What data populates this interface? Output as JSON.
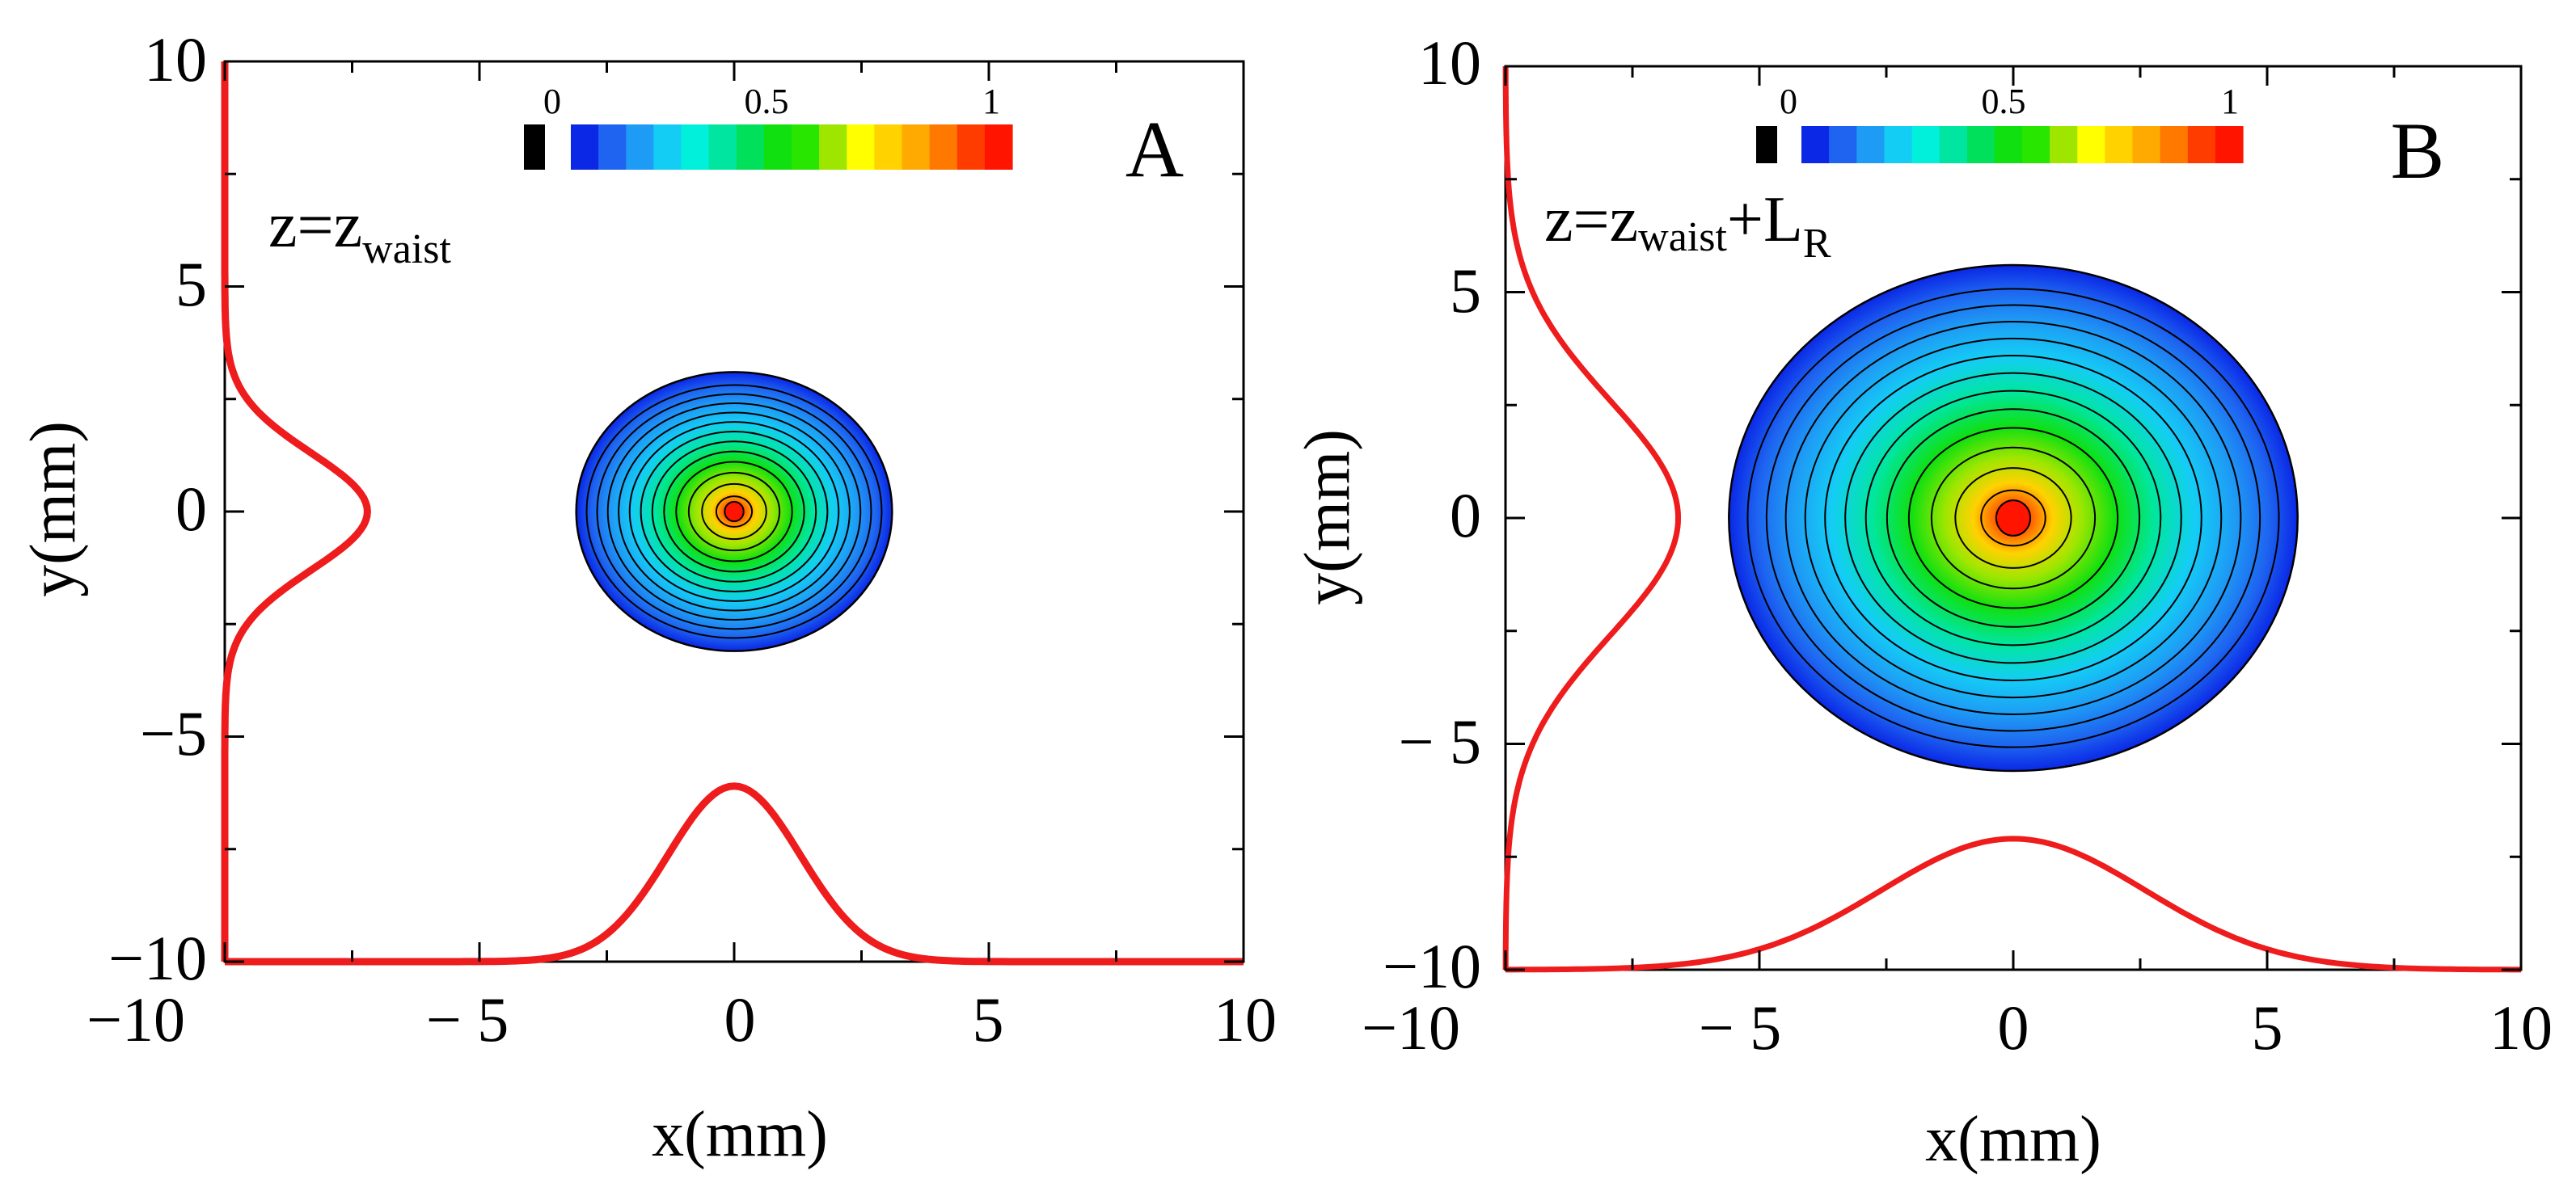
{
  "chart_data": [
    {
      "type": "contour",
      "panel_label": "A",
      "annotation": {
        "main": "z=z",
        "subscript": "waist",
        "suffix": "",
        "suffix_subscript": ""
      },
      "xlabel": "x(mm)",
      "ylabel": "y(mm)",
      "xlim": [
        -10,
        10
      ],
      "ylim": [
        -10,
        10
      ],
      "x_tick_labels": [
        "−10",
        "− 5",
        "0",
        "5",
        "10"
      ],
      "y_tick_labels": [
        "10",
        "5",
        "0",
        "−5",
        "−10"
      ],
      "colorbar": {
        "range": [
          0,
          1
        ],
        "tick_labels": [
          "0",
          "0.5",
          "1"
        ]
      },
      "beam": {
        "center": [
          0,
          0
        ],
        "radius_x_mm": 3.1,
        "radius_y_mm": 3.1,
        "contour_levels": 13
      },
      "x_profile": {
        "baseline_y": -10,
        "peak_y": -6.1,
        "sigma_mm": 1.3
      },
      "y_profile": {
        "baseline_x": -10,
        "peak_x": -7.2,
        "sigma_mm": 1.3
      }
    },
    {
      "type": "contour",
      "panel_label": "B",
      "annotation": {
        "main": "z=z",
        "subscript": "waist",
        "suffix": "+L",
        "suffix_subscript": "R"
      },
      "xlabel": "x(mm)",
      "ylabel": "y(mm)",
      "xlim": [
        -10,
        10
      ],
      "ylim": [
        -10,
        10
      ],
      "x_tick_labels": [
        "−10",
        "− 5",
        "0",
        "5",
        "10"
      ],
      "y_tick_labels": [
        "10",
        "5",
        "0",
        "− 5",
        "−10"
      ],
      "colorbar": {
        "range": [
          0,
          1
        ],
        "tick_labels": [
          "0",
          "0.5",
          "1"
        ]
      },
      "beam": {
        "center": [
          0,
          0
        ],
        "radius_x_mm": 5.6,
        "radius_y_mm": 5.6,
        "contour_levels": 13
      },
      "x_profile": {
        "baseline_y": -10,
        "peak_y": -7.1,
        "sigma_mm": 2.6
      },
      "y_profile": {
        "baseline_x": -10,
        "peak_x": -6.6,
        "sigma_mm": 2.6
      }
    }
  ],
  "colors": {
    "profile": "#ee1c1c",
    "colorbar_stops": [
      "#0a28e6",
      "#1e64f0",
      "#1e9bf5",
      "#14cdf5",
      "#00f0dc",
      "#00e6a0",
      "#00e05a",
      "#10e010",
      "#28e600",
      "#9ee600",
      "#ffff00",
      "#ffd200",
      "#ffaa00",
      "#ff7800",
      "#ff3c00",
      "#ff1400"
    ],
    "lowmark": "#000000"
  }
}
